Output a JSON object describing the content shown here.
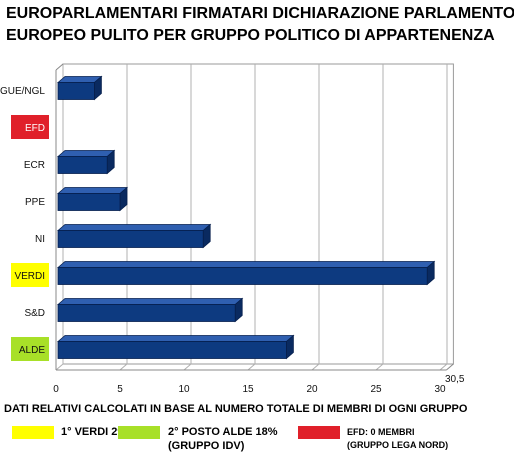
{
  "title_line1": "EUROPARLAMENTARI FIRMATARI DICHIARAZIONE PARLAMENTO",
  "title_line2": "EUROPEO PULITO PER GRUPPO POLITICO DI APPARTENENZA",
  "chart_data": {
    "type": "bar",
    "orientation": "horizontal",
    "categories": [
      "GUE/NGL",
      "EFD",
      "ECR",
      "PPE",
      "NI",
      "VERDI",
      "S&D",
      "ALDE"
    ],
    "values": [
      3,
      0,
      4,
      5,
      11.5,
      29,
      14,
      18
    ],
    "xlim": [
      0,
      30.5
    ],
    "xticks": [
      "0",
      "5",
      "10",
      "15",
      "20",
      "25",
      "30"
    ],
    "extra_tick_label": "30,5",
    "grid": true,
    "bar_color": "#0d3a80",
    "category_highlight": {
      "EFD": "#e0202a",
      "VERDI": "#ffff00",
      "ALDE": "#a8e028"
    }
  },
  "note": "DATI RELATIVI CALCOLATI IN BASE AL NUMERO TOTALE DI MEMBRI DI OGNI GRUPPO",
  "legend": [
    {
      "color": "#ffff00",
      "line1": "1° VERDI 29%",
      "line2": ""
    },
    {
      "color": "#a8e028",
      "line1": "2° POSTO ALDE 18%",
      "line2": "(GRUPPO IDV)"
    },
    {
      "color": "#e0202a",
      "line1": "EFD: 0 MEMBRI",
      "line2": "(GRUPPO LEGA NORD)"
    }
  ]
}
